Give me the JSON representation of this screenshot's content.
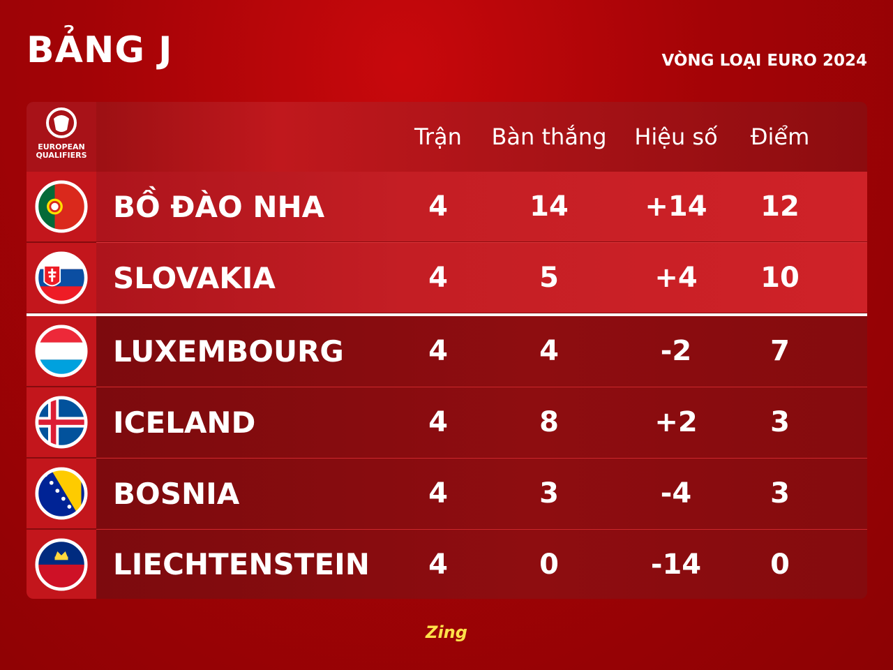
{
  "header": {
    "title": "BẢNG J",
    "subtitle": "VÒNG LOẠI EURO 2024"
  },
  "logo": {
    "lines": [
      "EUROPEAN",
      "QUALIFIERS"
    ]
  },
  "table": {
    "columns": [
      "Trận",
      "Bàn thắng",
      "Hiệu số",
      "Điểm"
    ],
    "rows": [
      [
        "BỒ ĐÀO NHA",
        "4",
        "14",
        "+14",
        "12"
      ],
      [
        "SLOVAKIA",
        "4",
        "5",
        "+4",
        "10"
      ],
      [
        "LUXEMBOURG",
        "4",
        "4",
        "-2",
        "7"
      ],
      [
        "ICELAND",
        "4",
        "8",
        "+2",
        "3"
      ],
      [
        "BOSNIA",
        "4",
        "3",
        "-4",
        "3"
      ],
      [
        "LIECHTENSTEIN",
        "4",
        "0",
        "-14",
        "0"
      ]
    ]
  },
  "footer": {
    "brand": "Zing"
  }
}
